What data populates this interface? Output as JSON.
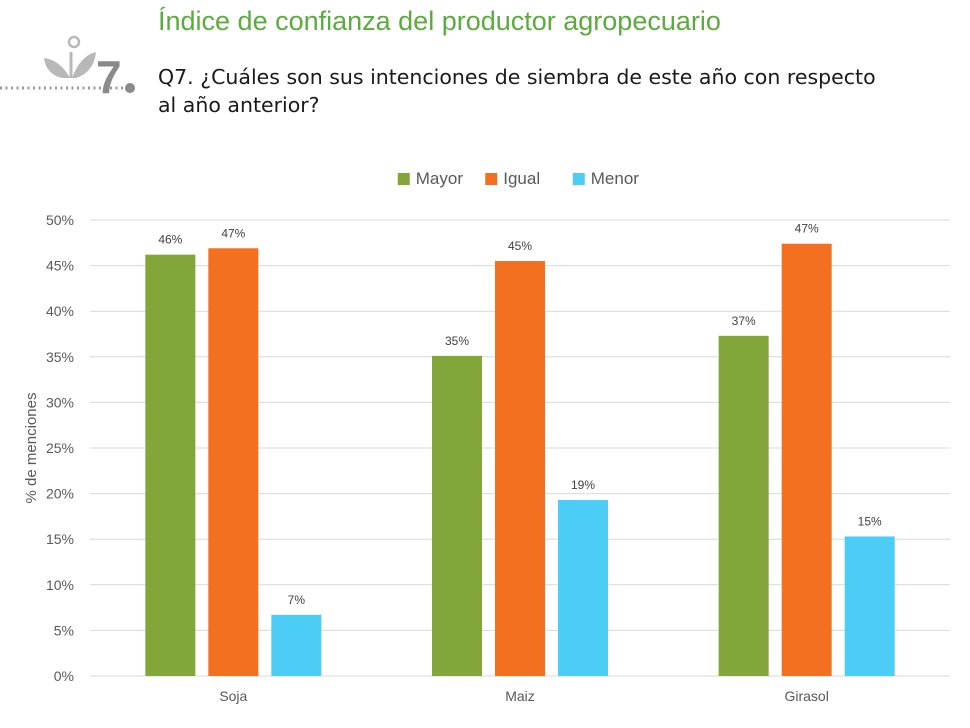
{
  "header": {
    "badge_number": "7",
    "icon": "sprout-icon",
    "title": "Índice de confianza del productor agropecuario",
    "question": "Q7. ¿Cuáles son sus intenciones de siembra de este año con respecto al año anterior?"
  },
  "chart_data": {
    "type": "bar",
    "title": "",
    "xlabel": "",
    "ylabel": "% de menciones",
    "categories": [
      "Soja",
      "Maiz",
      "Girasol"
    ],
    "series": [
      {
        "name": "Mayor",
        "color": "#82a63a",
        "values": [
          46.2,
          35.1,
          37.3
        ],
        "labels": [
          "46%",
          "35%",
          "37%"
        ]
      },
      {
        "name": "Igual",
        "color": "#f37021",
        "values": [
          46.9,
          45.5,
          47.4
        ],
        "labels": [
          "47%",
          "45%",
          "47%"
        ]
      },
      {
        "name": "Menor",
        "color": "#4ccdf5",
        "values": [
          6.7,
          19.3,
          15.3
        ],
        "labels": [
          "7%",
          "19%",
          "15%"
        ]
      }
    ],
    "ylim": [
      0,
      50
    ],
    "yticks": [
      0,
      5,
      10,
      15,
      20,
      25,
      30,
      35,
      40,
      45,
      50
    ],
    "ytick_labels": [
      "0%",
      "5%",
      "10%",
      "15%",
      "20%",
      "25%",
      "30%",
      "35%",
      "40%",
      "45%",
      "50%"
    ],
    "grid": true,
    "legend_position": "top-center"
  }
}
